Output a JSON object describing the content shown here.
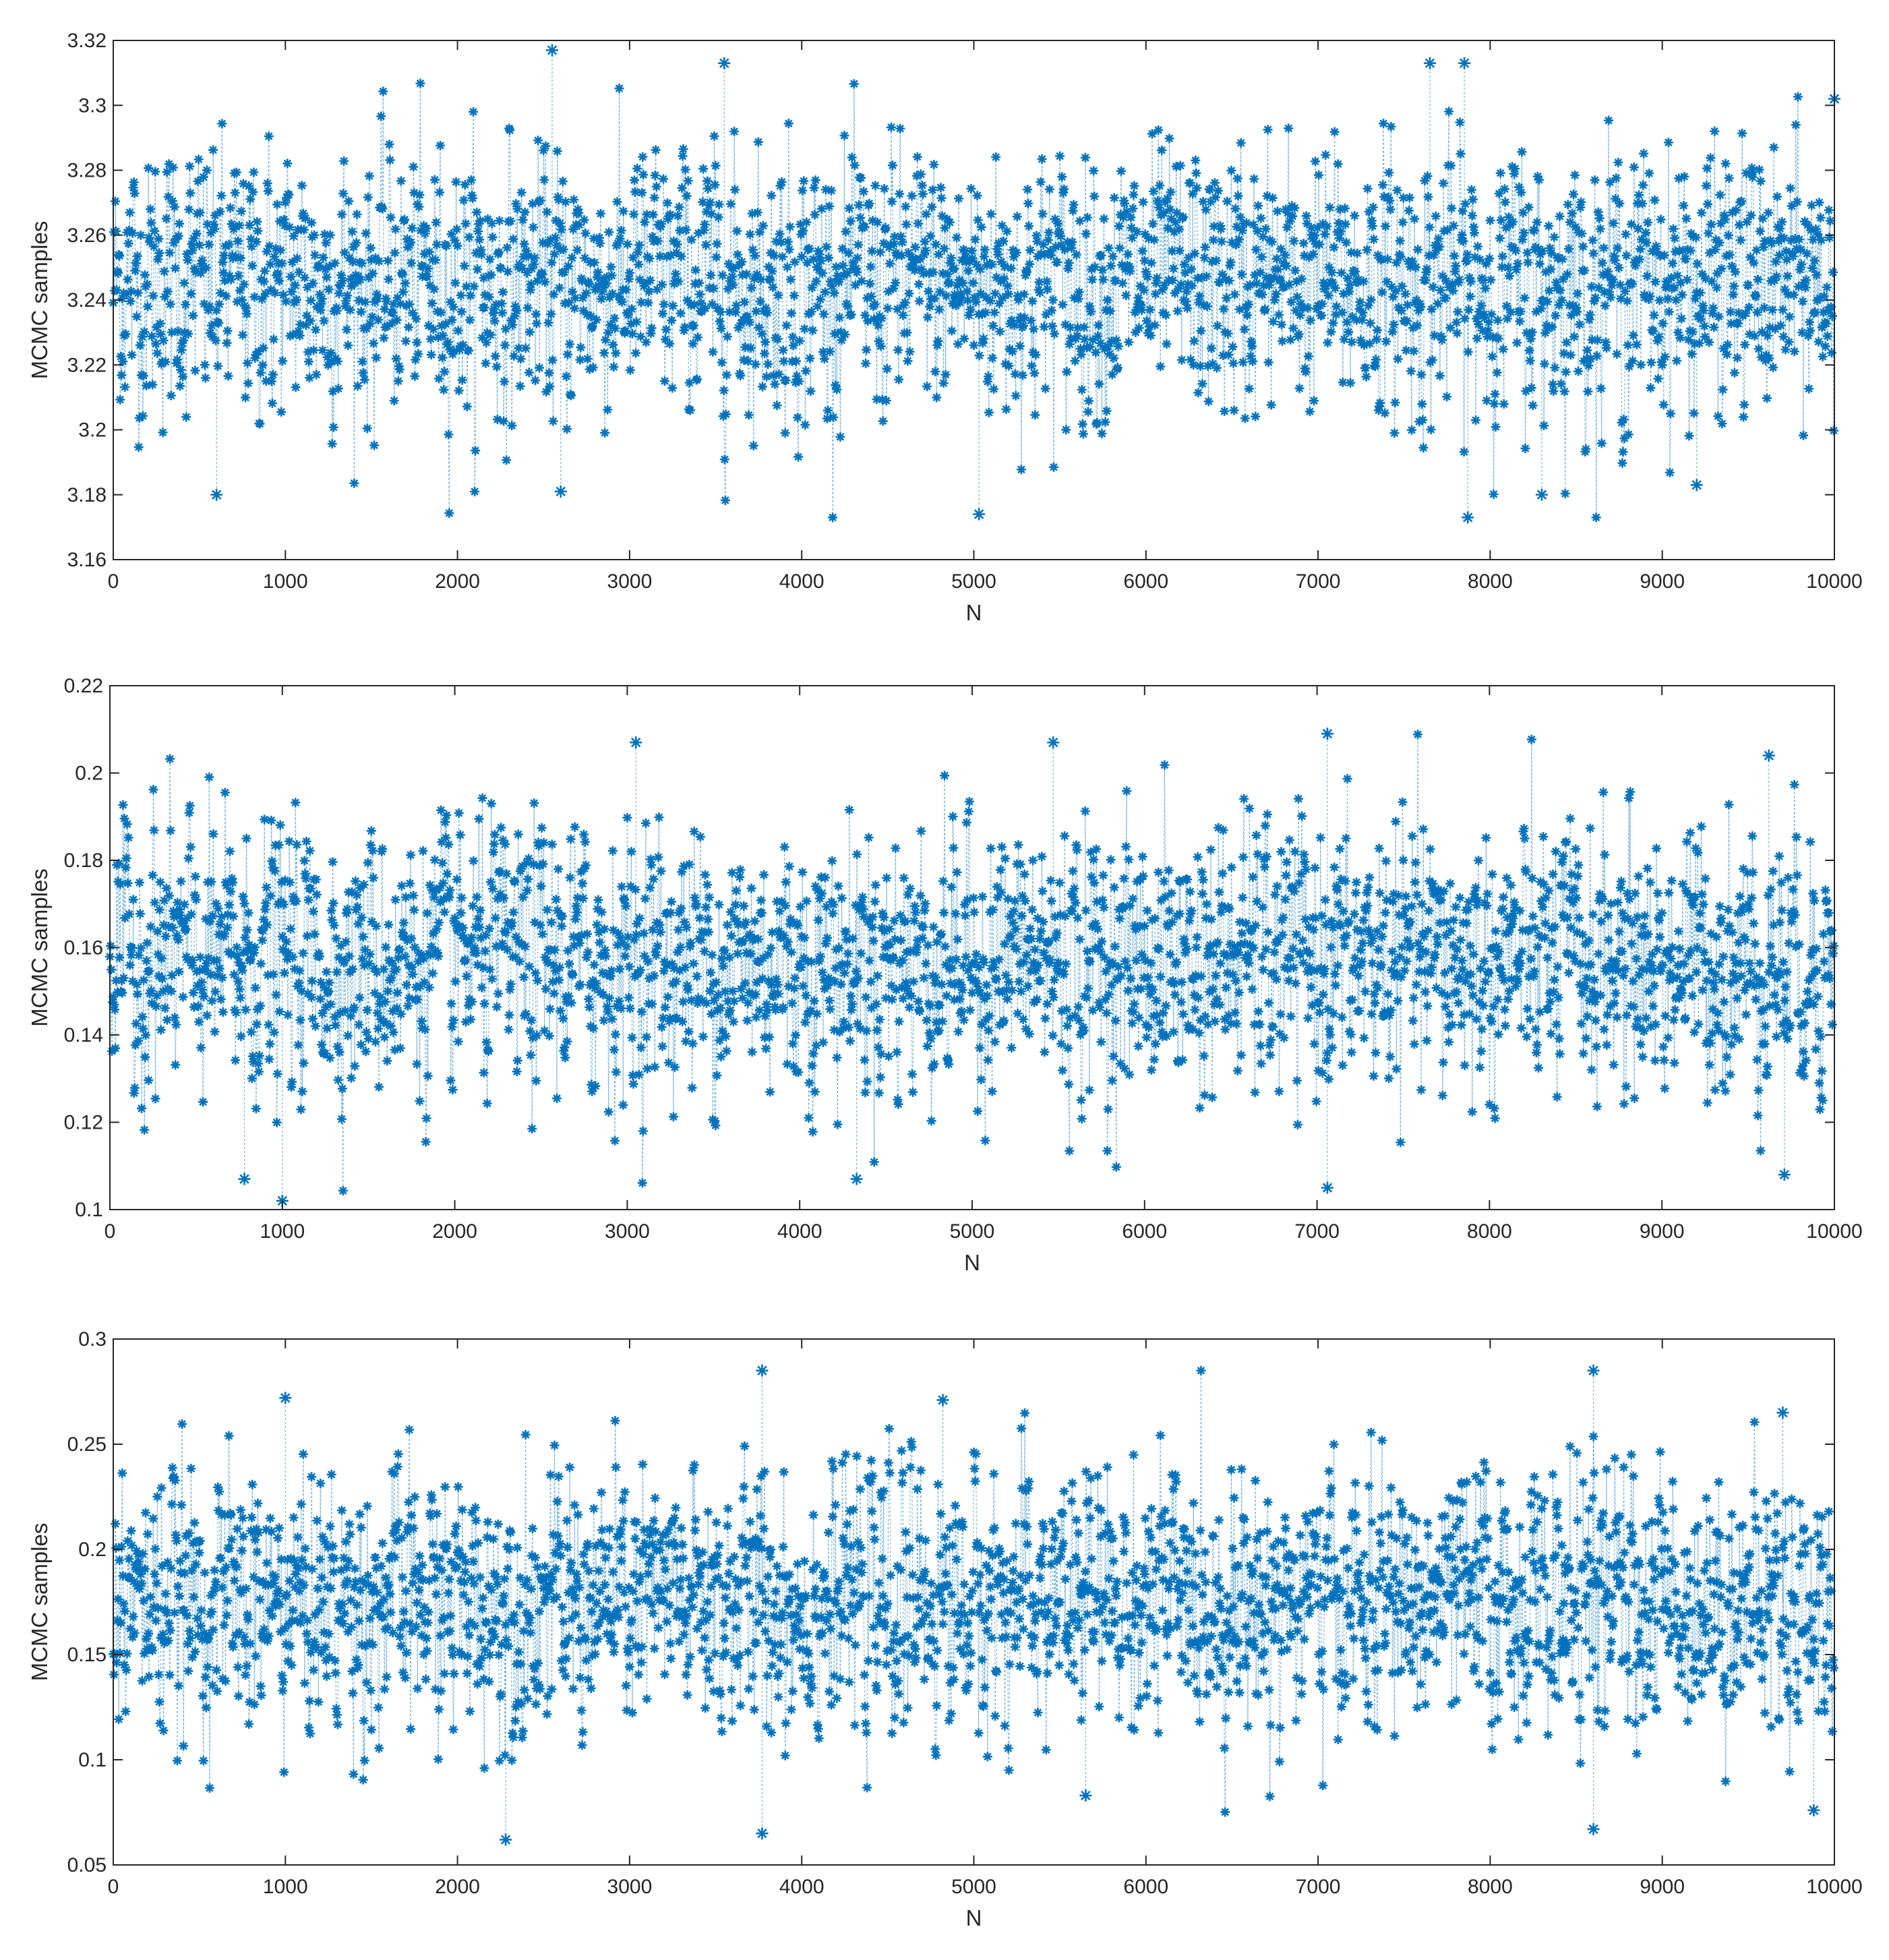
{
  "chart_data": [
    {
      "type": "scatter",
      "marker": "*",
      "line_style": "dotted",
      "color": "#0072BD",
      "xlabel": "N",
      "ylabel": "MCMC samples",
      "xlim": [
        0,
        10000
      ],
      "ylim": [
        3.16,
        3.32
      ],
      "xticks": [
        "0",
        "1000",
        "2000",
        "3000",
        "4000",
        "5000",
        "6000",
        "7000",
        "8000",
        "9000",
        "10000"
      ],
      "yticks": [
        "3.16",
        "3.18",
        "3.2",
        "3.22",
        "3.24",
        "3.26",
        "3.28",
        "3.3",
        "3.32"
      ],
      "n_samples": 10000,
      "center": 3.245,
      "spread": 0.02,
      "sample_range": [
        3.173,
        3.317
      ],
      "extremes": [
        {
          "x": 2550,
          "y": 3.317
        },
        {
          "x": 3550,
          "y": 3.313
        },
        {
          "x": 7650,
          "y": 3.313
        },
        {
          "x": 7850,
          "y": 3.313
        },
        {
          "x": 10000,
          "y": 3.302
        },
        {
          "x": 600,
          "y": 3.18
        },
        {
          "x": 2600,
          "y": 3.181
        },
        {
          "x": 5030,
          "y": 3.174
        },
        {
          "x": 7870,
          "y": 3.173
        },
        {
          "x": 8300,
          "y": 3.18
        },
        {
          "x": 9200,
          "y": 3.183
        }
      ]
    },
    {
      "type": "scatter",
      "marker": "*",
      "line_style": "dotted",
      "color": "#0072BD",
      "xlabel": "N",
      "ylabel": "MCMC samples",
      "xlim": [
        0,
        10000
      ],
      "ylim": [
        0.1,
        0.22
      ],
      "xticks": [
        "0",
        "1000",
        "2000",
        "3000",
        "4000",
        "5000",
        "6000",
        "7000",
        "8000",
        "9000",
        "10000"
      ],
      "yticks": [
        "0.1",
        "0.12",
        "0.14",
        "0.16",
        "0.18",
        "0.2",
        "0.22"
      ],
      "n_samples": 10000,
      "center": 0.157,
      "spread": 0.015,
      "sample_range": [
        0.102,
        0.209
      ],
      "extremes": [
        {
          "x": 3050,
          "y": 0.207
        },
        {
          "x": 5470,
          "y": 0.207
        },
        {
          "x": 7060,
          "y": 0.209
        },
        {
          "x": 9620,
          "y": 0.204
        },
        {
          "x": 1000,
          "y": 0.102
        },
        {
          "x": 780,
          "y": 0.107
        },
        {
          "x": 4330,
          "y": 0.107
        },
        {
          "x": 7060,
          "y": 0.105
        },
        {
          "x": 9710,
          "y": 0.108
        }
      ]
    },
    {
      "type": "scatter",
      "marker": "*",
      "line_style": "dotted",
      "color": "#0072BD",
      "xlabel": "N",
      "ylabel": "MCMC samples",
      "xlim": [
        0,
        10000
      ],
      "ylim": [
        0.05,
        0.3
      ],
      "xticks": [
        "0",
        "1000",
        "2000",
        "3000",
        "4000",
        "5000",
        "6000",
        "7000",
        "8000",
        "9000",
        "10000"
      ],
      "yticks": [
        "0.05",
        "0.1",
        "0.15",
        "0.2",
        "0.25",
        "0.3"
      ],
      "n_samples": 10000,
      "center": 0.175,
      "spread": 0.03,
      "sample_range": [
        0.062,
        0.285
      ],
      "extremes": [
        {
          "x": 3770,
          "y": 0.285
        },
        {
          "x": 8600,
          "y": 0.285
        },
        {
          "x": 1000,
          "y": 0.272
        },
        {
          "x": 4820,
          "y": 0.271
        },
        {
          "x": 9700,
          "y": 0.265
        },
        {
          "x": 2280,
          "y": 0.062
        },
        {
          "x": 3770,
          "y": 0.065
        },
        {
          "x": 8600,
          "y": 0.067
        },
        {
          "x": 9880,
          "y": 0.076
        },
        {
          "x": 5650,
          "y": 0.083
        }
      ]
    }
  ]
}
